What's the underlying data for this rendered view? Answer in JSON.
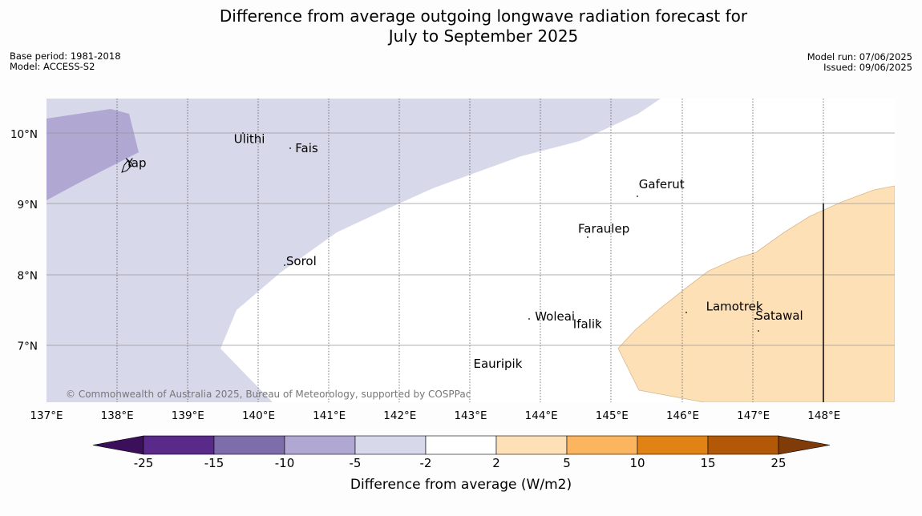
{
  "title_line1": "Difference from average outgoing longwave radiation forecast for",
  "title_line2": "July to September 2025",
  "meta_left": {
    "base_period": "Base period: 1981-2018",
    "model": "Model: ACCESS-S2"
  },
  "meta_right": {
    "model_run": "Model run: 07/06/2025",
    "issued": "Issued: 09/06/2025"
  },
  "map": {
    "lon_range": [
      137,
      149
    ],
    "lat_range": [
      6.2,
      10.5
    ],
    "lon_ticks": [
      "137°E",
      "138°E",
      "139°E",
      "140°E",
      "141°E",
      "142°E",
      "143°E",
      "144°E",
      "145°E",
      "146°E",
      "147°E",
      "148°E"
    ],
    "lat_ticks": [
      "10°N",
      "9°N",
      "8°N",
      "7°N"
    ],
    "places": [
      {
        "name": "Ulithi",
        "lon": 139.65,
        "lat": 9.87
      },
      {
        "name": "Fais",
        "lon": 140.52,
        "lat": 9.74
      },
      {
        "name": "Yap",
        "lon": 138.12,
        "lat": 9.53
      },
      {
        "name": "Gaferut",
        "lon": 145.38,
        "lat": 9.23
      },
      {
        "name": "Faraulep",
        "lon": 144.52,
        "lat": 8.6
      },
      {
        "name": "Sorol",
        "lon": 140.39,
        "lat": 8.14
      },
      {
        "name": "Lamotrek",
        "lon": 146.33,
        "lat": 7.5
      },
      {
        "name": "Woleai",
        "lon": 143.91,
        "lat": 7.36
      },
      {
        "name": "Ifalik",
        "lon": 144.45,
        "lat": 7.25
      },
      {
        "name": "Satawal",
        "lon": 147.03,
        "lat": 7.37
      },
      {
        "name": "Eauripik",
        "lon": 143.04,
        "lat": 6.69
      }
    ],
    "copyright": "© Commonwealth of Australia 2025, Bureau of Meteorology, supported by COSPPac"
  },
  "colorbar": {
    "label": "Difference from average (W/m2)",
    "ticks": [
      "-25",
      "-15",
      "-10",
      "-5",
      "-2",
      "2",
      "5",
      "10",
      "15",
      "25"
    ],
    "colors": [
      "#3b0f5a",
      "#5a2a8a",
      "#7e6dab",
      "#b0a8d2",
      "#d7d8ea",
      "#ffffff",
      "#fde0b6",
      "#fbb55f",
      "#e08214",
      "#b35806",
      "#7f3b08"
    ]
  }
}
